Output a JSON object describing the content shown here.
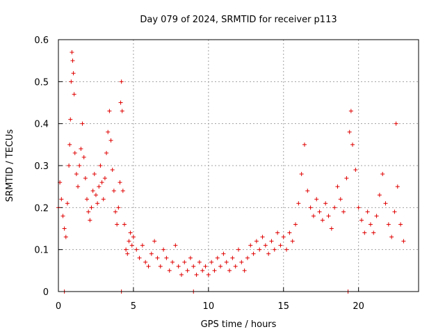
{
  "chart_data": {
    "type": "scatter",
    "title": "Day 079 of 2024, SRMTID for receiver p113",
    "xlabel": "GPS time / hours",
    "ylabel": "SRMTID / TECUs",
    "xlim": [
      0,
      24
    ],
    "ylim": [
      0,
      0.6
    ],
    "xticks": [
      0,
      5,
      10,
      15,
      20
    ],
    "yticks": [
      0,
      0.1,
      0.2,
      0.3,
      0.4,
      0.5,
      0.6
    ],
    "xtick_labels": [
      "0",
      "5",
      "10",
      "15",
      "20"
    ],
    "ytick_labels": [
      "0",
      "0.1",
      "0.2",
      "0.3",
      "0.4",
      "0.5",
      "0.6"
    ],
    "grid": true,
    "marker": "+",
    "color": "#e00000",
    "series": [
      {
        "name": "SRMTID",
        "points": [
          [
            0.0,
            0.2
          ],
          [
            0.1,
            0.26
          ],
          [
            0.2,
            0.22
          ],
          [
            0.3,
            0.18
          ],
          [
            0.4,
            0.15
          ],
          [
            0.5,
            0.13
          ],
          [
            0.6,
            0.21
          ],
          [
            0.7,
            0.3
          ],
          [
            0.75,
            0.35
          ],
          [
            0.8,
            0.41
          ],
          [
            0.85,
            0.5
          ],
          [
            0.9,
            0.57
          ],
          [
            0.95,
            0.55
          ],
          [
            1.0,
            0.52
          ],
          [
            1.05,
            0.47
          ],
          [
            1.1,
            0.33
          ],
          [
            1.2,
            0.28
          ],
          [
            1.3,
            0.25
          ],
          [
            1.4,
            0.3
          ],
          [
            1.5,
            0.34
          ],
          [
            1.6,
            0.4
          ],
          [
            1.7,
            0.32
          ],
          [
            1.8,
            0.27
          ],
          [
            1.9,
            0.22
          ],
          [
            2.0,
            0.19
          ],
          [
            2.1,
            0.17
          ],
          [
            2.2,
            0.2
          ],
          [
            2.3,
            0.24
          ],
          [
            2.4,
            0.28
          ],
          [
            2.5,
            0.23
          ],
          [
            2.6,
            0.21
          ],
          [
            2.7,
            0.25
          ],
          [
            2.8,
            0.3
          ],
          [
            2.9,
            0.26
          ],
          [
            3.0,
            0.22
          ],
          [
            3.1,
            0.27
          ],
          [
            3.2,
            0.33
          ],
          [
            3.3,
            0.38
          ],
          [
            3.4,
            0.43
          ],
          [
            3.5,
            0.36
          ],
          [
            3.6,
            0.29
          ],
          [
            3.7,
            0.24
          ],
          [
            3.8,
            0.19
          ],
          [
            3.9,
            0.16
          ],
          [
            4.0,
            0.2
          ],
          [
            4.1,
            0.26
          ],
          [
            4.15,
            0.45
          ],
          [
            4.2,
            0.5
          ],
          [
            4.25,
            0.43
          ],
          [
            4.3,
            0.24
          ],
          [
            4.4,
            0.16
          ],
          [
            4.5,
            0.1
          ],
          [
            4.6,
            0.09
          ],
          [
            4.7,
            0.12
          ],
          [
            4.8,
            0.14
          ],
          [
            4.9,
            0.11
          ],
          [
            5.0,
            0.13
          ],
          [
            5.2,
            0.1
          ],
          [
            5.4,
            0.08
          ],
          [
            5.6,
            0.11
          ],
          [
            5.8,
            0.07
          ],
          [
            6.0,
            0.06
          ],
          [
            6.2,
            0.09
          ],
          [
            6.4,
            0.12
          ],
          [
            6.6,
            0.08
          ],
          [
            6.8,
            0.06
          ],
          [
            7.0,
            0.1
          ],
          [
            7.2,
            0.08
          ],
          [
            7.4,
            0.05
          ],
          [
            7.6,
            0.07
          ],
          [
            7.8,
            0.11
          ],
          [
            8.0,
            0.06
          ],
          [
            8.2,
            0.04
          ],
          [
            8.4,
            0.07
          ],
          [
            8.6,
            0.05
          ],
          [
            8.8,
            0.08
          ],
          [
            9.0,
            0.06
          ],
          [
            9.2,
            0.04
          ],
          [
            9.4,
            0.07
          ],
          [
            9.6,
            0.05
          ],
          [
            9.8,
            0.06
          ],
          [
            10.0,
            0.04
          ],
          [
            10.2,
            0.07
          ],
          [
            10.4,
            0.05
          ],
          [
            10.6,
            0.08
          ],
          [
            10.8,
            0.06
          ],
          [
            11.0,
            0.09
          ],
          [
            11.2,
            0.07
          ],
          [
            11.4,
            0.05
          ],
          [
            11.6,
            0.08
          ],
          [
            11.8,
            0.06
          ],
          [
            12.0,
            0.1
          ],
          [
            12.2,
            0.07
          ],
          [
            12.4,
            0.05
          ],
          [
            12.6,
            0.08
          ],
          [
            12.8,
            0.11
          ],
          [
            13.0,
            0.09
          ],
          [
            13.2,
            0.12
          ],
          [
            13.4,
            0.1
          ],
          [
            13.6,
            0.13
          ],
          [
            13.8,
            0.11
          ],
          [
            14.0,
            0.09
          ],
          [
            14.2,
            0.12
          ],
          [
            14.4,
            0.1
          ],
          [
            14.6,
            0.14
          ],
          [
            14.8,
            0.11
          ],
          [
            15.0,
            0.13
          ],
          [
            15.2,
            0.1
          ],
          [
            15.4,
            0.14
          ],
          [
            15.6,
            0.12
          ],
          [
            15.8,
            0.16
          ],
          [
            16.0,
            0.21
          ],
          [
            16.2,
            0.28
          ],
          [
            16.4,
            0.35
          ],
          [
            16.6,
            0.24
          ],
          [
            16.8,
            0.2
          ],
          [
            17.0,
            0.18
          ],
          [
            17.2,
            0.22
          ],
          [
            17.4,
            0.19
          ],
          [
            17.6,
            0.17
          ],
          [
            17.8,
            0.21
          ],
          [
            18.0,
            0.18
          ],
          [
            18.2,
            0.15
          ],
          [
            18.4,
            0.2
          ],
          [
            18.6,
            0.25
          ],
          [
            18.8,
            0.22
          ],
          [
            19.0,
            0.19
          ],
          [
            19.2,
            0.27
          ],
          [
            19.4,
            0.38
          ],
          [
            19.5,
            0.43
          ],
          [
            19.6,
            0.35
          ],
          [
            19.8,
            0.29
          ],
          [
            20.0,
            0.2
          ],
          [
            20.2,
            0.17
          ],
          [
            20.4,
            0.14
          ],
          [
            20.6,
            0.19
          ],
          [
            20.8,
            0.16
          ],
          [
            21.0,
            0.14
          ],
          [
            21.2,
            0.18
          ],
          [
            21.4,
            0.23
          ],
          [
            21.6,
            0.28
          ],
          [
            21.8,
            0.21
          ],
          [
            22.0,
            0.16
          ],
          [
            22.2,
            0.13
          ],
          [
            22.4,
            0.19
          ],
          [
            22.5,
            0.4
          ],
          [
            22.6,
            0.25
          ],
          [
            22.8,
            0.16
          ],
          [
            23.0,
            0.12
          ],
          [
            0.4,
            0.0
          ],
          [
            4.2,
            0.0
          ],
          [
            9.0,
            0.0
          ],
          [
            19.3,
            0.0
          ]
        ]
      }
    ]
  }
}
